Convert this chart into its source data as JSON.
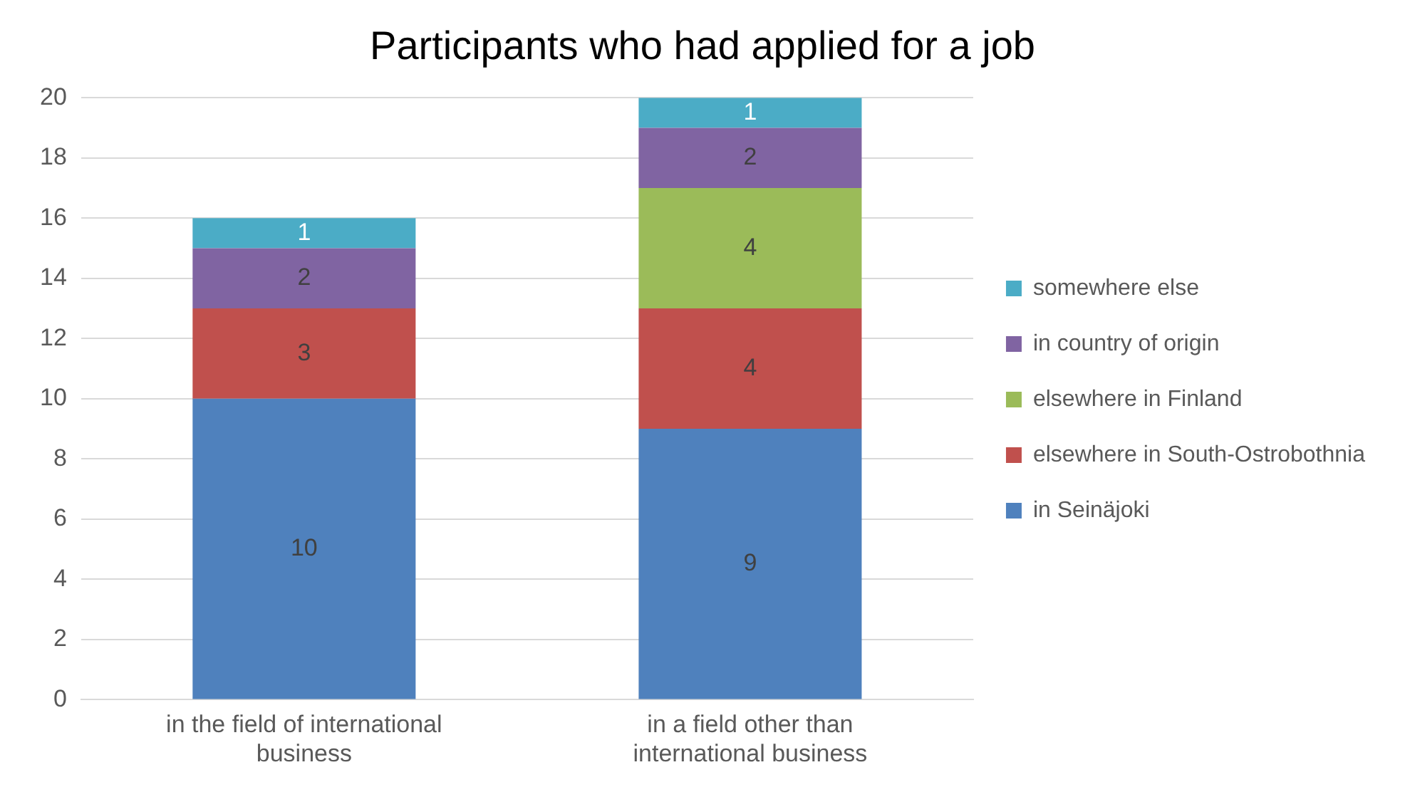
{
  "chart_data": {
    "type": "bar",
    "title": "Participants who had applied for a job",
    "categories": [
      "in the field of international business",
      "in a field other than international business"
    ],
    "stacked": true,
    "series": [
      {
        "name": "in Seinäjoki",
        "color": "#4f81bd",
        "values": [
          10,
          9
        ]
      },
      {
        "name": "elsewhere in South-Ostrobothnia",
        "color": "#c0504d",
        "values": [
          3,
          4
        ]
      },
      {
        "name": "elsewhere in Finland",
        "color": "#9bbb59",
        "values": [
          null,
          4
        ]
      },
      {
        "name": "in country of origin",
        "color": "#8064a2",
        "values": [
          2,
          2
        ]
      },
      {
        "name": "somewhere else",
        "color": "#4bacc6",
        "values": [
          1,
          1
        ]
      }
    ],
    "ylim": [
      0,
      20
    ],
    "yticks": [
      0,
      2,
      4,
      6,
      8,
      10,
      12,
      14,
      16,
      18,
      20
    ],
    "grid": "y",
    "legend": "right",
    "data_labels": true
  }
}
